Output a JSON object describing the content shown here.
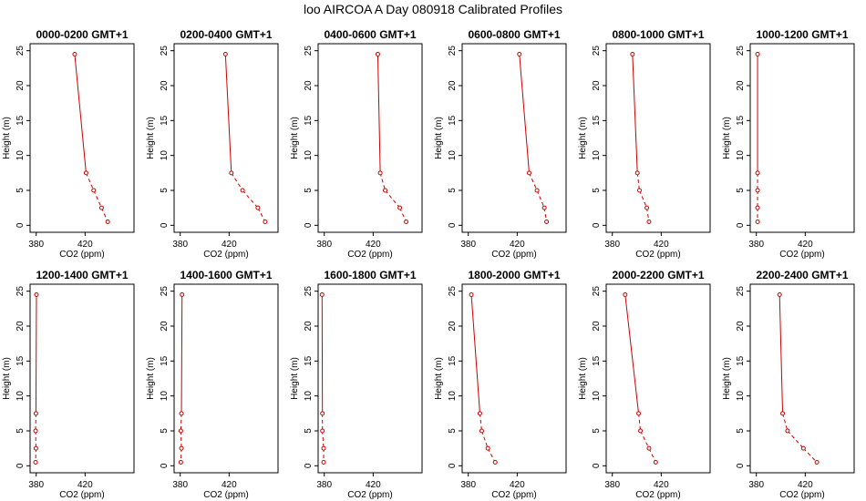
{
  "title": "loo AIRCOA A  Day 080918  Calibrated Profiles",
  "chart_data": {
    "type": "line",
    "xlabel": "CO2 (ppm)",
    "ylabel": "Height (m)",
    "xlim": [
      375,
      460
    ],
    "ylim": [
      -1,
      26
    ],
    "xticks": [
      380,
      420
    ],
    "yticks": [
      0,
      5,
      10,
      15,
      20,
      25
    ],
    "color": "#cc0000",
    "grid": false,
    "heights": [
      24.5,
      7.5,
      5,
      2.5,
      0.5
    ],
    "panels": [
      {
        "title": "0000-0200 GMT+1",
        "co2": [
          411.5,
          420.8,
          427.0,
          433.5,
          438.5
        ]
      },
      {
        "title": "0200-0400 GMT+1",
        "co2": [
          417.0,
          421.8,
          431.0,
          443.5,
          449.5
        ]
      },
      {
        "title": "0400-0600 GMT+1",
        "co2": [
          423.8,
          425.8,
          429.8,
          441.8,
          447.0
        ]
      },
      {
        "title": "0600-0800 GMT+1",
        "co2": [
          421.8,
          429.8,
          436.2,
          442.2,
          444.0
        ]
      },
      {
        "title": "0800-1000 GMT+1",
        "co2": [
          396.5,
          400.5,
          402.2,
          408.2,
          410.0
        ]
      },
      {
        "title": "1000-1200 GMT+1",
        "co2": [
          381.0,
          381.0,
          381.0,
          381.0,
          381.0
        ]
      },
      {
        "title": "1200-1400 GMT+1",
        "co2": [
          380.2,
          379.8,
          379.5,
          379.8,
          379.5
        ]
      },
      {
        "title": "1400-1600 GMT+1",
        "co2": [
          381.5,
          381.0,
          380.5,
          381.0,
          380.5
        ]
      },
      {
        "title": "1600-1800 GMT+1",
        "co2": [
          378.2,
          378.5,
          378.5,
          379.5,
          379.5
        ]
      },
      {
        "title": "1800-2000 GMT+1",
        "co2": [
          382.5,
          389.5,
          391.0,
          396.0,
          402.0
        ]
      },
      {
        "title": "2000-2200 GMT+1",
        "co2": [
          390.5,
          401.5,
          403.0,
          410.0,
          415.5
        ]
      },
      {
        "title": "2200-2400 GMT+1",
        "co2": [
          399.0,
          401.5,
          405.5,
          418.5,
          429.5
        ]
      }
    ]
  }
}
